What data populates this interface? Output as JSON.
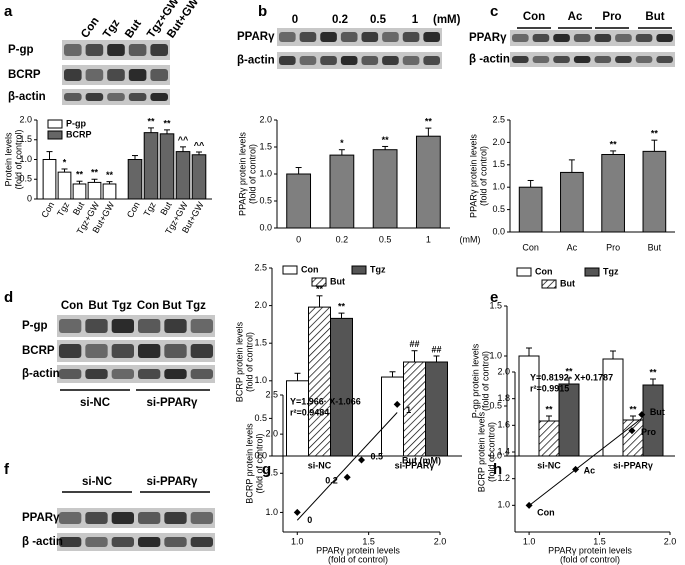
{
  "panels": [
    "a",
    "b",
    "c",
    "d",
    "e",
    "f",
    "g",
    "h"
  ],
  "blots": [
    {
      "columns": [
        "Con",
        "Tgz",
        "But",
        "Tgz+GW",
        "But+GW"
      ],
      "rows": [
        "P-gp",
        "BCRP",
        "β-actin"
      ]
    },
    {
      "columns": [
        "0",
        "0.2",
        "0.5",
        "1"
      ],
      "unit": "(mM)",
      "rows": [
        "PPARγ",
        "β-actin"
      ]
    },
    {
      "columns": [
        "Con",
        "Ac",
        "Pro",
        "But"
      ],
      "rows": [
        "PPARγ",
        "β -actin"
      ]
    },
    {
      "columns": [
        "Con",
        "But",
        "Tgz",
        "Con",
        "But",
        "Tgz"
      ],
      "rows": [
        "P-gp",
        "BCRP",
        "β-actin"
      ],
      "groups": [
        "si-NC",
        "si-PPARγ"
      ]
    },
    {
      "groups": [
        "si-NC",
        "si-PPARγ"
      ],
      "rows": [
        "PPARγ",
        "β -actin"
      ]
    }
  ],
  "chart_data": [
    {
      "type": "bar",
      "ylabel": [
        "Protein levels",
        "(fold of control)"
      ],
      "categories": [
        "Con",
        "Tgz",
        "But",
        "Tgz+GW",
        "But+GW"
      ],
      "series": [
        {
          "name": "P-gp",
          "color": "#ffffff",
          "values": [
            1.0,
            0.68,
            0.38,
            0.42,
            0.38
          ],
          "errors": [
            0.2,
            0.08,
            0.07,
            0.08,
            0.06
          ],
          "annotations": [
            null,
            "*",
            "**",
            "**",
            "**"
          ]
        },
        {
          "name": "BCRP",
          "color": "#666666",
          "values": [
            1.0,
            1.68,
            1.65,
            1.2,
            1.12
          ],
          "errors": [
            0.1,
            0.12,
            0.1,
            0.12,
            0.07
          ],
          "annotations": [
            null,
            "**",
            "**",
            "^^",
            "^^"
          ]
        }
      ],
      "ylim": [
        0,
        2
      ],
      "yticks": [
        0,
        0.5,
        {
          "value": 1,
          "label": "1.0"
        },
        1.5,
        {
          "value": 2,
          "label": "2.0"
        }
      ],
      "legend": "upper left"
    },
    {
      "type": "bar",
      "ylabel": [
        "PPARγ  protein levels",
        "(fold of control)"
      ],
      "categories": [
        "0",
        "0.2",
        "0.5",
        "1"
      ],
      "xlabel": "(mM)",
      "values": [
        1.0,
        1.35,
        1.45,
        1.7
      ],
      "errors": [
        0.12,
        0.1,
        0.06,
        0.15
      ],
      "annotations": [
        null,
        "*",
        "**",
        "**"
      ],
      "color": "#7f7f7f",
      "ylim": [
        0,
        2
      ],
      "yticks": [
        {
          "value": 0,
          "label": "0.0"
        },
        0.5,
        {
          "value": 1,
          "label": "1.0"
        },
        1.5,
        {
          "value": 2,
          "label": "2.0"
        }
      ]
    },
    {
      "type": "bar",
      "ylabel": [
        "PPARγ  protein levels",
        "(fold of control)"
      ],
      "categories": [
        "Con",
        "Ac",
        "Pro",
        "But"
      ],
      "values": [
        1.0,
        1.33,
        1.73,
        1.8
      ],
      "errors": [
        0.15,
        0.28,
        0.08,
        0.25
      ],
      "annotations": [
        null,
        null,
        "**",
        "**"
      ],
      "color": "#7f7f7f",
      "ylim": [
        0,
        2.5
      ],
      "yticks": [
        {
          "value": 0,
          "label": "0.0"
        },
        0.5,
        {
          "value": 1,
          "label": "1.0"
        },
        1.5,
        {
          "value": 2,
          "label": "2.0"
        },
        2.5
      ]
    },
    {
      "type": "bar",
      "ylabel": [
        "BCRP protein levels",
        "(fold of control)"
      ],
      "categories": [
        "si-NC",
        "si-PPARγ"
      ],
      "series": [
        {
          "name": "Con",
          "color": "#ffffff",
          "values": [
            1.0,
            1.05
          ],
          "errors": [
            0.1,
            0.07
          ],
          "annotations": [
            null,
            null
          ]
        },
        {
          "name": "But",
          "color": "#ffffff",
          "hatch": true,
          "values": [
            1.98,
            1.25
          ],
          "errors": [
            0.15,
            0.15
          ],
          "annotations": [
            "**",
            "##"
          ]
        },
        {
          "name": "Tgz",
          "color": "#555555",
          "values": [
            1.83,
            1.25
          ],
          "errors": [
            0.07,
            0.08
          ],
          "annotations": [
            "**",
            "##"
          ]
        }
      ],
      "ylim": [
        0,
        2.5
      ],
      "yticks": [
        {
          "value": 0,
          "label": "0.0"
        },
        0.5,
        {
          "value": 1,
          "label": "1.0"
        },
        1.5,
        {
          "value": 2,
          "label": "2.0"
        },
        2.5
      ],
      "legend": "upper center"
    },
    {
      "type": "bar",
      "ylabel": [
        "P-gp protein levels",
        "(fold of control)"
      ],
      "categories": [
        "si-NC",
        "si-PPARγ"
      ],
      "series": [
        {
          "name": "Con",
          "color": "#ffffff",
          "values": [
            1.0,
            0.97
          ],
          "errors": [
            0.08,
            0.08
          ],
          "annotations": [
            null,
            null
          ]
        },
        {
          "name": "But",
          "color": "#ffffff",
          "hatch": true,
          "values": [
            0.35,
            0.36
          ],
          "errors": [
            0.05,
            0.04
          ],
          "annotations": [
            "**",
            "**"
          ]
        },
        {
          "name": "Tgz",
          "color": "#555555",
          "values": [
            0.72,
            0.71
          ],
          "errors": [
            0.06,
            0.06
          ],
          "annotations": [
            "**",
            "**"
          ]
        }
      ],
      "ylim": [
        0,
        1.5
      ],
      "yticks": [
        {
          "value": 0,
          "label": "0.0"
        },
        0.5,
        {
          "value": 1,
          "label": "1.0"
        },
        1.5
      ],
      "legend": "upper center"
    },
    {
      "type": "scatter",
      "ylabel": [
        "BCRP protein levels",
        "(fold of control)"
      ],
      "xlabel": [
        "PPARγ  protein levels",
        "(fold of control)"
      ],
      "x": [
        1.0,
        1.35,
        1.45,
        1.7
      ],
      "y": [
        1.0,
        1.45,
        1.67,
        2.38
      ],
      "point_labels": [
        "0",
        "0.2",
        "0.5",
        "1"
      ],
      "annotation": "But (mM)",
      "equation": "Y=1.966· X-1.066",
      "r2": "r²=0.9484",
      "fit": {
        "slope": 1.966,
        "intercept": -1.066
      },
      "color": "#000000",
      "xlim": [
        0.9,
        2.0
      ],
      "ylim": [
        0.75,
        2.5
      ],
      "xticks": [
        {
          "value": 1,
          "label": "1.0"
        },
        1.5,
        {
          "value": 2,
          "label": "2.0"
        }
      ],
      "yticks": [
        {
          "value": 1,
          "label": "1.0"
        },
        1.5,
        {
          "value": 2,
          "label": "2.0"
        },
        2.5
      ]
    },
    {
      "type": "scatter",
      "ylabel": [
        "BCRP protein levels",
        "(fold of control)"
      ],
      "xlabel": [
        "PPARγ  protein levels",
        "(fold of control)"
      ],
      "x": [
        1.0,
        1.33,
        1.73,
        1.8
      ],
      "y": [
        1.0,
        1.27,
        1.56,
        1.68
      ],
      "point_labels": [
        "Con",
        "Ac",
        "Pro",
        "But"
      ],
      "equation": "Y=0.8192· X+0.1787",
      "r2": "r²=0.9915",
      "fit": {
        "slope": 0.8192,
        "intercept": 0.1787
      },
      "color": "#000000",
      "xlim": [
        0.9,
        2.0
      ],
      "ylim": [
        0.8,
        2.0
      ],
      "xticks": [
        {
          "value": 1,
          "label": "1.0"
        },
        1.5,
        {
          "value": 2,
          "label": "2.0"
        }
      ],
      "yticks": [
        {
          "value": 1,
          "label": "1.0"
        },
        1.2,
        1.4,
        1.6,
        1.8,
        {
          "value": 2,
          "label": "2.0"
        }
      ]
    }
  ]
}
